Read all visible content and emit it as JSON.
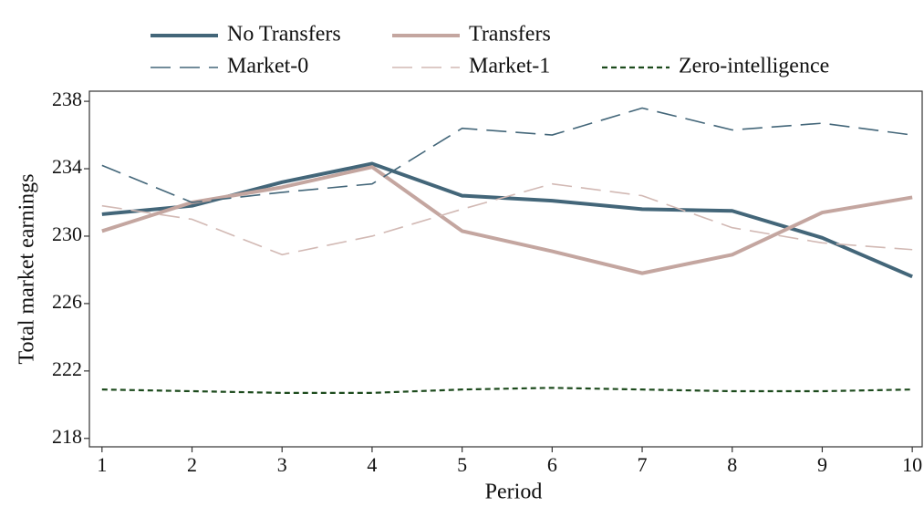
{
  "chart_data": {
    "type": "line",
    "x_label": "Period",
    "y_label": "Total market earnings",
    "x": [
      1,
      2,
      3,
      4,
      5,
      6,
      7,
      8,
      9,
      10
    ],
    "xlim": [
      0.86,
      10.11
    ],
    "xticks": [
      1,
      2,
      3,
      4,
      5,
      6,
      7,
      8,
      9,
      10
    ],
    "ylim": [
      217.5,
      238.6
    ],
    "yticks": [
      218,
      222,
      226,
      230,
      234,
      238
    ],
    "grid": false,
    "legend": "top",
    "series": [
      {
        "name": "No Transfers",
        "color": "#436679",
        "style": "solid",
        "values": [
          231.3,
          231.8,
          233.2,
          234.3,
          232.4,
          232.1,
          231.6,
          231.5,
          229.9,
          227.6
        ]
      },
      {
        "name": "Transfers",
        "color": "#c4a6a0",
        "style": "solid",
        "values": [
          230.3,
          232.0,
          232.9,
          234.1,
          230.3,
          229.1,
          227.8,
          228.9,
          231.4,
          232.3
        ]
      },
      {
        "name": "Market-0",
        "color": "#436679",
        "style": "dashed",
        "values": [
          234.2,
          232.0,
          232.6,
          233.1,
          236.4,
          236.0,
          237.6,
          236.3,
          236.7,
          236.0
        ]
      },
      {
        "name": "Market-1",
        "color": "#d2b9b4",
        "style": "dashed",
        "values": [
          231.8,
          231.0,
          228.9,
          230.0,
          231.6,
          233.1,
          232.4,
          230.5,
          229.6,
          229.2
        ]
      },
      {
        "name": "Zero-intelligence",
        "color": "#1c4a1c",
        "style": "dotted",
        "values": [
          220.9,
          220.8,
          220.7,
          220.7,
          220.9,
          221.0,
          220.9,
          220.8,
          220.8,
          220.9
        ]
      }
    ]
  }
}
